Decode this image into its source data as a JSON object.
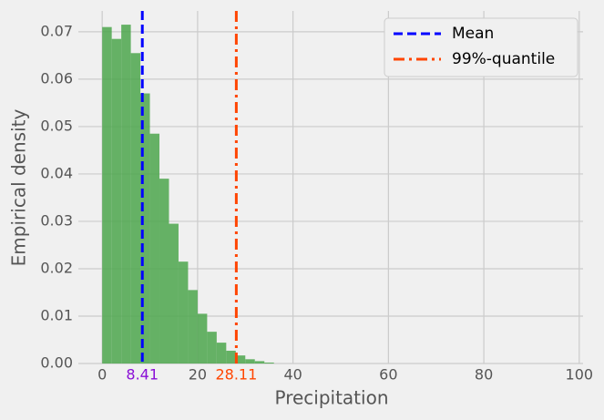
{
  "chart_data": {
    "type": "histogram",
    "x_label": "Precipitation",
    "y_label": "Empirical density",
    "bins": [
      0,
      2,
      4,
      6,
      8,
      10,
      12,
      14,
      16,
      18,
      20,
      22,
      24,
      26,
      28,
      30,
      32,
      34,
      36
    ],
    "values": [
      0.071,
      0.0685,
      0.0715,
      0.0655,
      0.057,
      0.0485,
      0.039,
      0.0295,
      0.0215,
      0.0155,
      0.0105,
      0.0067,
      0.0044,
      0.0027,
      0.0017,
      0.0009,
      0.0005,
      0.0002
    ],
    "color": "#4ca64c",
    "vlines": [
      {
        "name": "Mean",
        "value": 8.41,
        "color": "#0000ff",
        "dash": "10 5",
        "label_color": "#8a0fd6"
      },
      {
        "name": "99%-quantile",
        "value": 28.11,
        "color": "#ff4500",
        "dash": "12 5 3 5",
        "label_color": "#ff4500"
      }
    ],
    "xlim": [
      -5,
      100.8
    ],
    "ylim": [
      0,
      0.0744
    ],
    "xticks": [
      0,
      20,
      40,
      60,
      80,
      100
    ],
    "yticks": [
      {
        "value": 0,
        "label": "0.00"
      },
      {
        "value": 0.01,
        "label": "0.01"
      },
      {
        "value": 0.02,
        "label": "0.02"
      },
      {
        "value": 0.03,
        "label": "0.03"
      },
      {
        "value": 0.04,
        "label": "0.04"
      },
      {
        "value": 0.05,
        "label": "0.05"
      },
      {
        "value": 0.06,
        "label": "0.06"
      },
      {
        "value": 0.07,
        "label": "0.07"
      }
    ],
    "grid": true,
    "legend": "upper right"
  }
}
